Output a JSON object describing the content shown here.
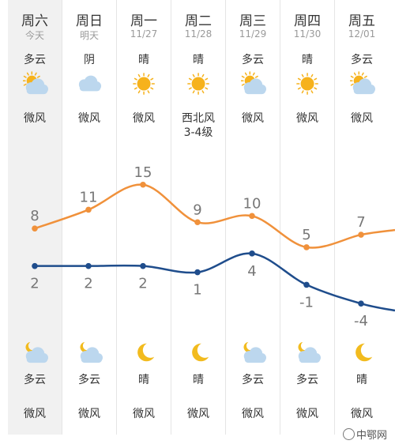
{
  "days": [
    {
      "dow": "周六",
      "date": "今天",
      "day_cond": "多云",
      "day_icon": "partly-cloudy-day-icon",
      "wind": [
        "微风"
      ],
      "high": 8,
      "low": 2,
      "night_icon": "partly-cloudy-night-icon",
      "night_cond": "多云",
      "night_wind": "微风"
    },
    {
      "dow": "周日",
      "date": "明天",
      "day_cond": "阴",
      "day_icon": "cloudy-icon",
      "wind": [
        "微风"
      ],
      "high": 11,
      "low": 2,
      "night_icon": "partly-cloudy-night-icon",
      "night_cond": "多云",
      "night_wind": "微风"
    },
    {
      "dow": "周一",
      "date": "11/27",
      "day_cond": "晴",
      "day_icon": "sunny-icon",
      "wind": [
        "微风"
      ],
      "high": 15,
      "low": 2,
      "night_icon": "moon-icon",
      "night_cond": "晴",
      "night_wind": "微风"
    },
    {
      "dow": "周二",
      "date": "11/28",
      "day_cond": "晴",
      "day_icon": "sunny-icon",
      "wind": [
        "西北风",
        "3-4级"
      ],
      "high": 9,
      "low": 1,
      "night_icon": "moon-icon",
      "night_cond": "晴",
      "night_wind": "微风"
    },
    {
      "dow": "周三",
      "date": "11/29",
      "day_cond": "多云",
      "day_icon": "partly-cloudy-day-icon",
      "wind": [
        "微风"
      ],
      "high": 10,
      "low": 4,
      "night_icon": "partly-cloudy-night-icon",
      "night_cond": "多云",
      "night_wind": "微风"
    },
    {
      "dow": "周四",
      "date": "11/30",
      "day_cond": "晴",
      "day_icon": "sunny-icon",
      "wind": [
        "微风"
      ],
      "high": 5,
      "low": -1,
      "night_icon": "partly-cloudy-night-icon",
      "night_cond": "多云",
      "night_wind": "微风"
    },
    {
      "dow": "周五",
      "date": "12/01",
      "day_cond": "多云",
      "day_icon": "partly-cloudy-day-icon",
      "wind": [
        "微风"
      ],
      "high": 7,
      "low": -4,
      "night_icon": "moon-icon",
      "night_cond": "晴",
      "night_wind": "微风"
    }
  ],
  "chart_data": {
    "type": "line",
    "categories": [
      "周六",
      "周日",
      "周一",
      "周二",
      "周三",
      "周四",
      "周五"
    ],
    "series": [
      {
        "values": [
          8,
          11,
          15,
          9,
          10,
          5,
          7
        ],
        "color": "#f0913b"
      },
      {
        "values": [
          2,
          2,
          2,
          1,
          4,
          -1,
          -4
        ],
        "color": "#1f4d8c"
      }
    ]
  },
  "watermark": "中鄂网",
  "colors": {
    "high_line": "#f0913b",
    "low_line": "#1f4d8c",
    "sun": "#f6b21c",
    "cloud": "#bcd7ee",
    "moon": "#f2bb1e"
  }
}
